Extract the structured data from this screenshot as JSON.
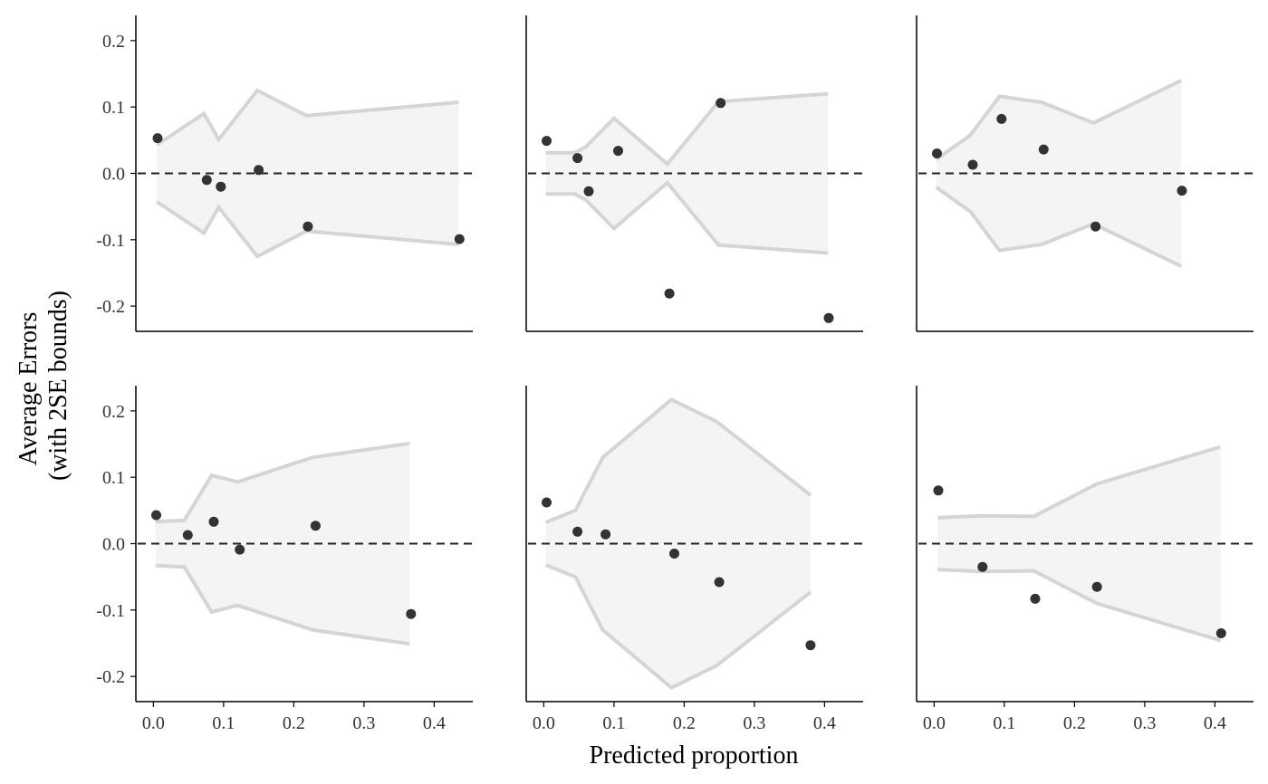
{
  "chart_data": {
    "type": "scatter",
    "layout": "2x3 facets",
    "xlabel": "Predicted proportion",
    "ylabel_lines": [
      "Average Errors",
      "(with 2SE bounds)"
    ],
    "xlim": [
      -0.025,
      0.455
    ],
    "ylim": [
      -0.238,
      0.238
    ],
    "x_ticks": [
      0.0,
      0.1,
      0.2,
      0.3,
      0.4
    ],
    "x_tick_labels": [
      "0.0",
      "0.1",
      "0.2",
      "0.3",
      "0.4"
    ],
    "y_ticks": [
      0.2,
      0.1,
      0.0,
      -0.1,
      -0.2
    ],
    "y_tick_labels": [
      "0.2",
      "0.1",
      "0.0",
      "-0.1",
      "-0.2"
    ],
    "reference_line": 0,
    "colors": {
      "band_fill": "#f4f4f4",
      "band_line": "#d5d5d5",
      "points": "#333333",
      "reference": "#222222",
      "axes": "#000000"
    },
    "panels": [
      {
        "band": {
          "x": [
            0.005,
            0.072,
            0.093,
            0.148,
            0.218,
            0.435
          ],
          "upper": [
            0.043,
            0.09,
            0.051,
            0.125,
            0.087,
            0.107
          ]
        },
        "points": {
          "x": [
            0.006,
            0.076,
            0.096,
            0.15,
            0.22,
            0.436
          ],
          "y": [
            0.053,
            -0.01,
            -0.02,
            0.005,
            -0.08,
            -0.099
          ]
        }
      },
      {
        "band": {
          "x": [
            0.003,
            0.044,
            0.06,
            0.1,
            0.176,
            0.249,
            0.405
          ],
          "upper": [
            0.031,
            0.031,
            0.04,
            0.083,
            0.014,
            0.108,
            0.12
          ]
        },
        "points": {
          "x": [
            0.004,
            0.048,
            0.064,
            0.106,
            0.179,
            0.252,
            0.406
          ],
          "y": [
            0.049,
            0.023,
            -0.027,
            0.034,
            -0.181,
            0.106,
            -0.218
          ]
        }
      },
      {
        "band": {
          "x": [
            0.003,
            0.052,
            0.093,
            0.153,
            0.227,
            0.352
          ],
          "upper": [
            0.021,
            0.058,
            0.116,
            0.107,
            0.076,
            0.14
          ]
        },
        "points": {
          "x": [
            0.004,
            0.055,
            0.096,
            0.156,
            0.23,
            0.353
          ],
          "y": [
            0.03,
            0.013,
            0.082,
            0.036,
            -0.08,
            -0.026
          ]
        }
      },
      {
        "band": {
          "x": [
            0.003,
            0.044,
            0.083,
            0.12,
            0.227,
            0.365
          ],
          "upper": [
            0.033,
            0.035,
            0.103,
            0.093,
            0.13,
            0.151
          ]
        },
        "points": {
          "x": [
            0.004,
            0.049,
            0.086,
            0.123,
            0.231,
            0.367
          ],
          "y": [
            0.043,
            0.013,
            0.033,
            -0.009,
            0.027,
            -0.106
          ]
        }
      },
      {
        "band": {
          "x": [
            0.003,
            0.045,
            0.084,
            0.182,
            0.246,
            0.38
          ],
          "upper": [
            0.032,
            0.05,
            0.13,
            0.217,
            0.184,
            0.073
          ]
        },
        "points": {
          "x": [
            0.004,
            0.048,
            0.088,
            0.186,
            0.25,
            0.38
          ],
          "y": [
            0.062,
            0.018,
            0.014,
            -0.015,
            -0.058,
            -0.153
          ]
        }
      },
      {
        "band": {
          "x": [
            0.005,
            0.068,
            0.142,
            0.232,
            0.408
          ],
          "upper": [
            0.039,
            0.042,
            0.041,
            0.09,
            0.146
          ]
        },
        "points": {
          "x": [
            0.006,
            0.069,
            0.144,
            0.232,
            0.409
          ],
          "y": [
            0.08,
            -0.035,
            -0.083,
            -0.065,
            -0.135
          ]
        }
      }
    ]
  }
}
